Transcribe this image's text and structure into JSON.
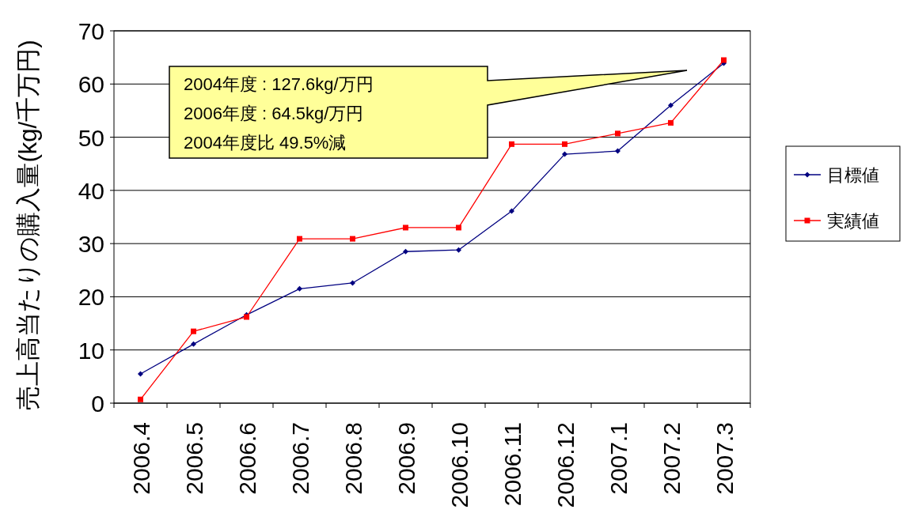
{
  "chart_data": {
    "type": "line",
    "ylabel": "売上高当たりの購入量(kg/千万円)",
    "categories": [
      "2006.4",
      "2006.5",
      "2006.6",
      "2006.7",
      "2006.8",
      "2006.9",
      "2006.10",
      "2006.11",
      "2006.12",
      "2007.1",
      "2007.2",
      "2007.3"
    ],
    "series": [
      {
        "name": "目標値",
        "color": "#000080",
        "marker": "diamond",
        "values": [
          5.5,
          11.1,
          16.6,
          21.5,
          22.6,
          28.5,
          28.8,
          36.1,
          46.8,
          47.4,
          56.0,
          63.9
        ]
      },
      {
        "name": "実績値",
        "color": "#ff0000",
        "marker": "square",
        "values": [
          0.7,
          13.5,
          16.2,
          30.9,
          30.9,
          33.0,
          33.0,
          48.7,
          48.7,
          50.7,
          52.7,
          64.5
        ]
      }
    ],
    "ylim": [
      0,
      70
    ],
    "yticks": [
      0,
      10,
      20,
      30,
      40,
      50,
      60,
      70
    ],
    "grid": "y",
    "legend": "right",
    "annotations": [
      "2004年度 : 127.6kg/万円",
      "2006年度 : 64.5kg/万円",
      "2004年度比 49.5%減"
    ]
  }
}
